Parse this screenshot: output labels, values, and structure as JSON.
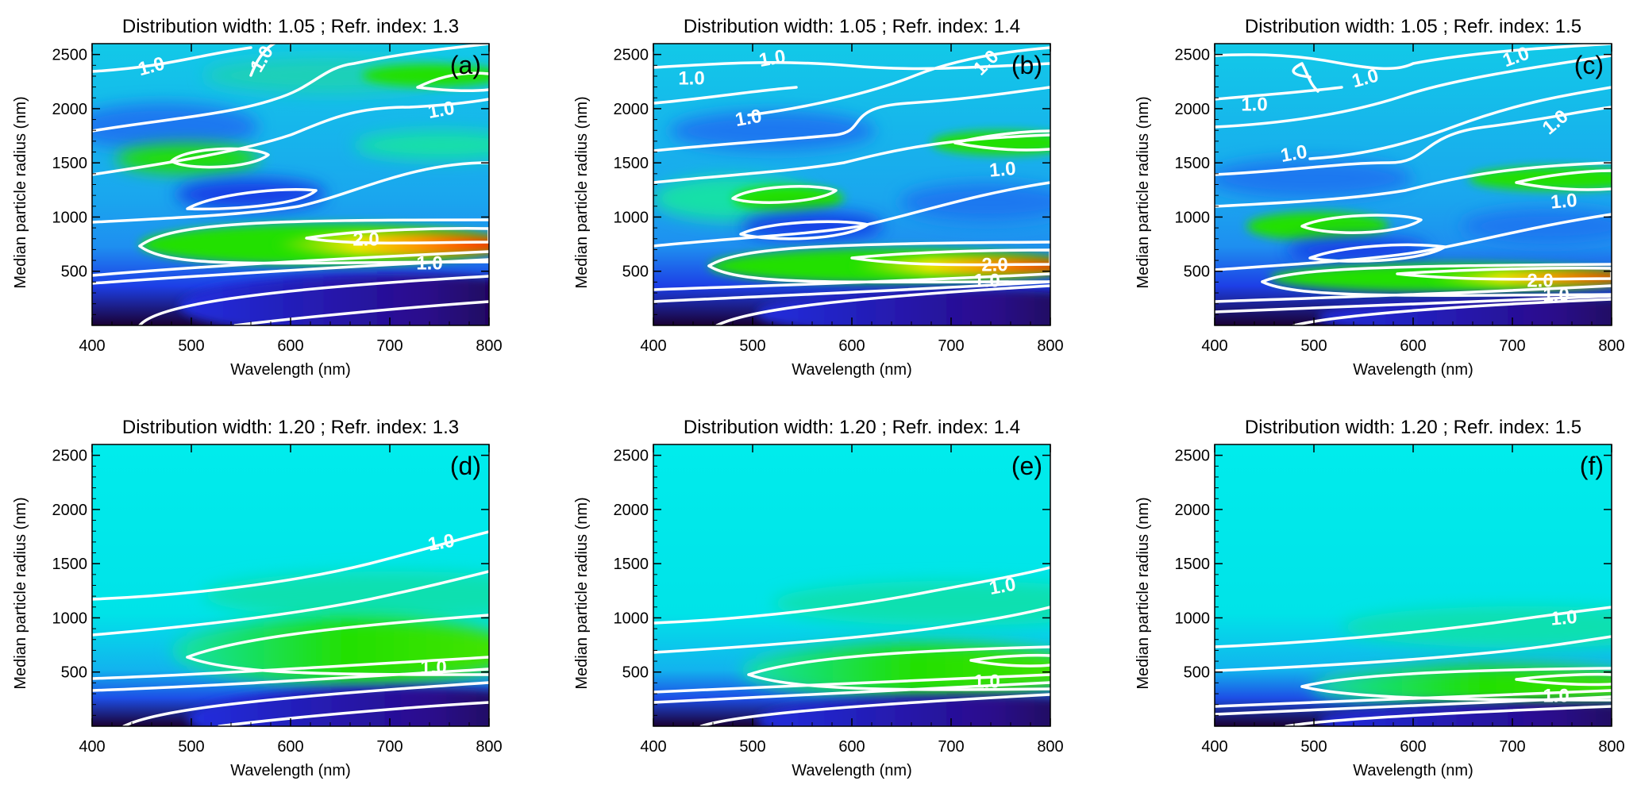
{
  "colors": {
    "deep": "#1a0033",
    "blue": "#1f2fe0",
    "mid_blue": "#1e8ff0",
    "cyan": "#00ecec",
    "green": "#22e000",
    "yellow": "#f0e400",
    "orange": "#ff9800",
    "red": "#ff1600",
    "contour": "#ffffff"
  },
  "chart_data": [
    {
      "type": "heatmap",
      "panel_label": "(a)",
      "title": "Distribution width: 1.05 ; Refr. index: 1.3",
      "xlabel": "Wavelength (nm)",
      "ylabel": "Median particle radius (nm)",
      "xlim": [
        400,
        800
      ],
      "ylim": [
        0,
        2600
      ],
      "xticks": [
        "400",
        "500",
        "600",
        "700",
        "800"
      ],
      "yticks": [
        "500",
        "1000",
        "1500",
        "2000",
        "2500"
      ],
      "contour_labels": [
        "1.0",
        "1.0",
        "1.0",
        "2.0",
        "1.0"
      ]
    },
    {
      "type": "heatmap",
      "panel_label": "(b)",
      "title": "Distribution width: 1.05 ; Refr. index: 1.4",
      "xlabel": "Wavelength (nm)",
      "ylabel": "Median particle radius (nm)",
      "xlim": [
        400,
        800
      ],
      "ylim": [
        0,
        2600
      ],
      "xticks": [
        "400",
        "500",
        "600",
        "700",
        "800"
      ],
      "yticks": [
        "500",
        "1000",
        "1500",
        "2000",
        "2500"
      ],
      "contour_labels": [
        "1.0",
        "1.0",
        "1.0",
        "1.0",
        "1.0",
        "2.0",
        "1.0"
      ]
    },
    {
      "type": "heatmap",
      "panel_label": "(c)",
      "title": "Distribution width: 1.05 ; Refr. index: 1.5",
      "xlabel": "Wavelength (nm)",
      "ylabel": "Median particle radius (nm)",
      "xlim": [
        400,
        800
      ],
      "ylim": [
        0,
        2600
      ],
      "xticks": [
        "400",
        "500",
        "600",
        "700",
        "800"
      ],
      "yticks": [
        "500",
        "1000",
        "1500",
        "2000",
        "2500"
      ],
      "contour_labels": [
        "1.0",
        "1.0",
        "1.0",
        "1.0",
        "1.0",
        "1.0",
        "2.0",
        "1.0"
      ]
    },
    {
      "type": "heatmap",
      "panel_label": "(d)",
      "title": "Distribution width: 1.20 ; Refr. index: 1.3",
      "xlabel": "Wavelength (nm)",
      "ylabel": "Median particle radius (nm)",
      "xlim": [
        400,
        800
      ],
      "ylim": [
        0,
        2600
      ],
      "xticks": [
        "400",
        "500",
        "600",
        "700",
        "800"
      ],
      "yticks": [
        "500",
        "1000",
        "1500",
        "2000",
        "2500"
      ],
      "contour_labels": [
        "1.0",
        "1.0"
      ]
    },
    {
      "type": "heatmap",
      "panel_label": "(e)",
      "title": "Distribution width: 1.20 ; Refr. index: 1.4",
      "xlabel": "Wavelength (nm)",
      "ylabel": "Median particle radius (nm)",
      "xlim": [
        400,
        800
      ],
      "ylim": [
        0,
        2600
      ],
      "xticks": [
        "400",
        "500",
        "600",
        "700",
        "800"
      ],
      "yticks": [
        "500",
        "1000",
        "1500",
        "2000",
        "2500"
      ],
      "contour_labels": [
        "1.0",
        "1.0"
      ]
    },
    {
      "type": "heatmap",
      "panel_label": "(f)",
      "title": "Distribution width: 1.20 ; Refr. index: 1.5",
      "xlabel": "Wavelength (nm)",
      "ylabel": "Median particle radius (nm)",
      "xlim": [
        400,
        800
      ],
      "ylim": [
        0,
        2600
      ],
      "xticks": [
        "400",
        "500",
        "600",
        "700",
        "800"
      ],
      "yticks": [
        "500",
        "1000",
        "1500",
        "2000",
        "2500"
      ],
      "contour_labels": [
        "1.0",
        "1.0"
      ]
    }
  ]
}
